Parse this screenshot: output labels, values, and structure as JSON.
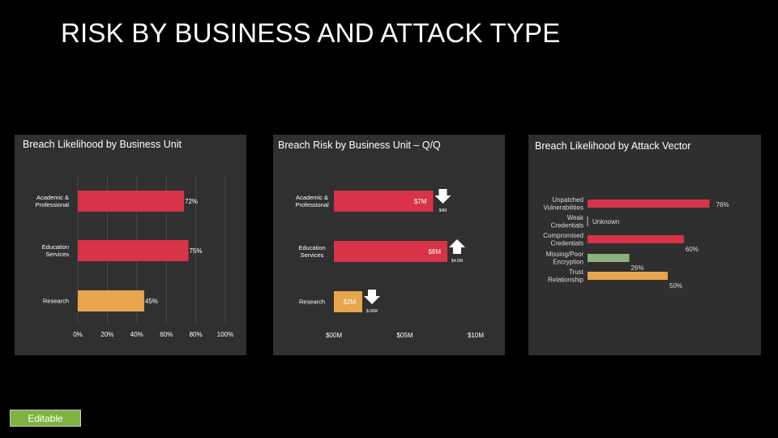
{
  "page": {
    "title": "RISK BY BUSINESS AND ATTACK TYPE",
    "editable_label": "Editable"
  },
  "colors": {
    "red": "#d83347",
    "orange": "#e7a54c",
    "green": "#8bb27a",
    "panel": "#303030",
    "grid": "#4a4a4a"
  },
  "chart_data": [
    {
      "type": "bar",
      "orientation": "horizontal",
      "title": "Breach Likelihood by Business Unit",
      "categories": [
        "Academic & Professional",
        "Education Services",
        "Research"
      ],
      "category_lines": [
        [
          "Academic &",
          "Professional"
        ],
        [
          "Education",
          "Services"
        ],
        [
          "Research"
        ]
      ],
      "values": [
        72,
        75,
        45
      ],
      "data_labels": [
        "72%",
        "75%",
        "45%"
      ],
      "bar_colors": [
        "#d83347",
        "#d83347",
        "#e7a54c"
      ],
      "xlim": [
        0,
        100
      ],
      "xticks": [
        0,
        20,
        40,
        60,
        80,
        100
      ],
      "xtick_labels": [
        "0%",
        "20%",
        "40%",
        "60%",
        "80%",
        "100%"
      ],
      "grid": true
    },
    {
      "type": "bar",
      "orientation": "horizontal",
      "title": "Breach Risk by Business Unit – Q/Q",
      "categories": [
        "Academic & Professional",
        "Education Services",
        "Research"
      ],
      "category_lines": [
        [
          "Academic &",
          "Professional"
        ],
        [
          "Education",
          "Services"
        ],
        [
          "Research"
        ]
      ],
      "values": [
        7,
        8,
        2
      ],
      "data_labels": [
        "$7M",
        "$8M",
        "$2M"
      ],
      "bar_colors": [
        "#d83347",
        "#d83347",
        "#e7a54c"
      ],
      "changes": [
        {
          "direction": "down",
          "label": "$4M"
        },
        {
          "direction": "up",
          "label": "$4.5M"
        },
        {
          "direction": "down",
          "label": "$.06M"
        }
      ],
      "xlim": [
        0,
        10
      ],
      "xticks": [
        0,
        5,
        10
      ],
      "xtick_labels": [
        "$00M",
        "$05M",
        "$10M"
      ],
      "grid": false
    },
    {
      "type": "bar",
      "orientation": "horizontal",
      "title": "Breach Likelihood by Attack Vector",
      "categories": [
        "Unpatched Vulnerabilities",
        "Weak Credentials",
        "Compromised Credentials",
        "Missing/Poor Encryption",
        "Trust Relationship"
      ],
      "category_lines": [
        [
          "Unpatched",
          "Vulnerabilities"
        ],
        [
          "Weak",
          "Credentials"
        ],
        [
          "Compromised",
          "Credentials"
        ],
        [
          "Missing/Poor",
          "Encryption"
        ],
        [
          "Trust",
          "Relationship"
        ]
      ],
      "values": [
        76,
        null,
        60,
        26,
        50
      ],
      "data_labels": [
        "76%",
        "Unknown",
        "60%",
        "26%",
        "50%"
      ],
      "bar_colors": [
        "#d83347",
        null,
        "#d83347",
        "#8bb27a",
        "#e7a54c"
      ],
      "xlim": [
        0,
        100
      ],
      "grid": false
    }
  ]
}
